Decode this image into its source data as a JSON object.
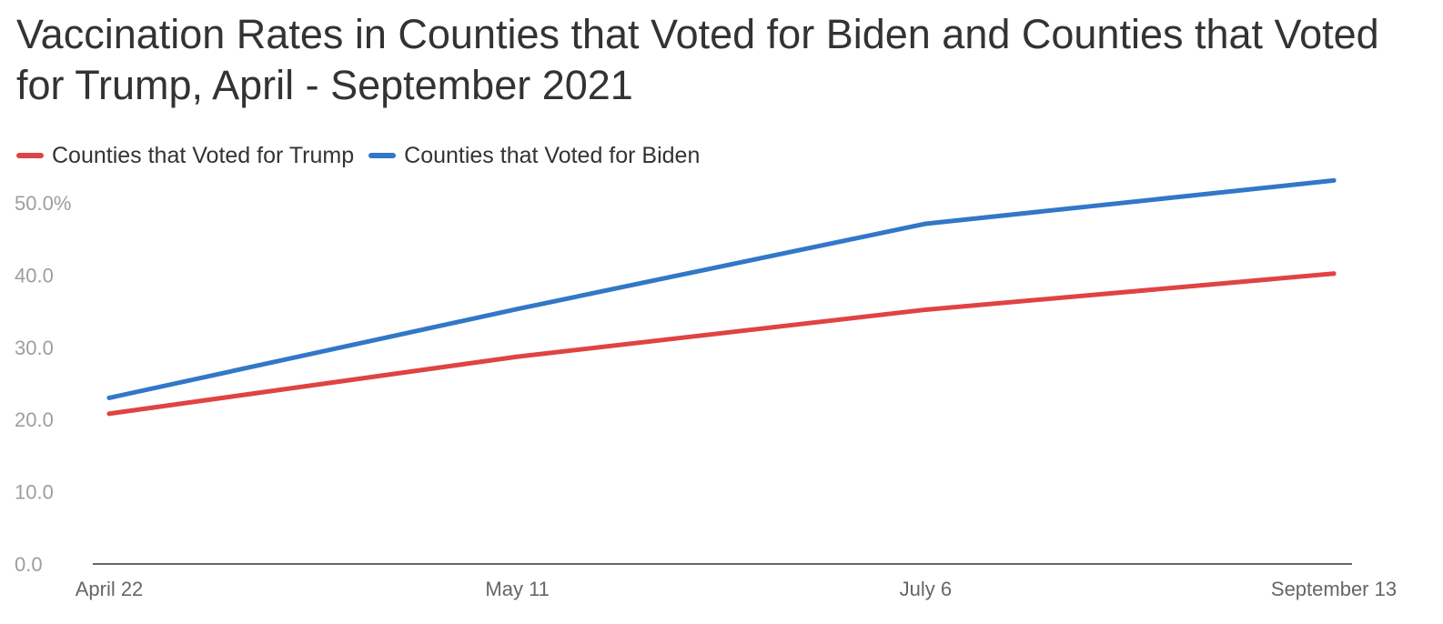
{
  "chart_data": {
    "type": "line",
    "title": "Vaccination Rates in Counties that Voted for Biden and Counties that Voted for Trump, April - September 2021",
    "xlabel": "",
    "ylabel": "",
    "categories": [
      "April 22",
      "May 11",
      "July 6",
      "September 13"
    ],
    "series": [
      {
        "name": "Counties that Voted for Trump",
        "color": "#e04343",
        "values": [
          20.8,
          28.7,
          35.2,
          40.2
        ]
      },
      {
        "name": "Counties that Voted for Biden",
        "color": "#3277c8",
        "values": [
          23.0,
          35.3,
          47.1,
          53.1
        ]
      }
    ],
    "ylim": [
      0,
      50
    ],
    "y_ticks": [
      "0.0",
      "10.0",
      "20.0",
      "30.0",
      "40.0",
      "50.0%"
    ],
    "y_tick_values": [
      0,
      10,
      20,
      30,
      40,
      50
    ],
    "grid": false,
    "legend_position": "top-left"
  }
}
